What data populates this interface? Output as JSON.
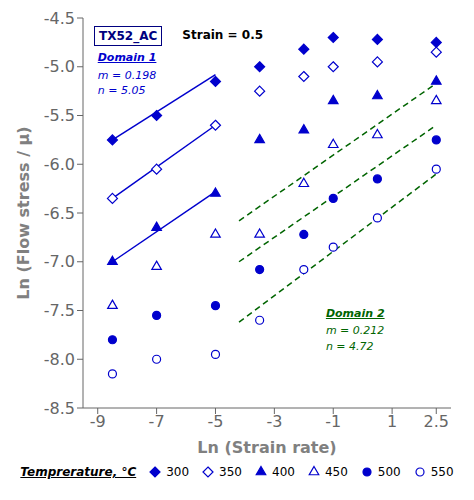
{
  "chart_data": {
    "type": "scatter",
    "xlabel": "Ln (Strain rate)",
    "ylabel": "Ln (Flow stress / μ)",
    "xlim": [
      -9.5,
      3.0
    ],
    "ylim": [
      -8.5,
      -4.5
    ],
    "xticks": [
      -9,
      -7,
      -5,
      -3,
      -1,
      1,
      2.5
    ],
    "yticks": [
      -8.5,
      {
        "value": -8.0,
        "label": "-8.0"
      },
      -7.5,
      {
        "value": -7.0,
        "label": "-7.0"
      },
      -6.5,
      {
        "value": -6.0,
        "label": "-6.0"
      },
      -5.5,
      {
        "value": -5.0,
        "label": "-5.0"
      },
      -4.5
    ],
    "grid": false,
    "legend": "bottom",
    "legend_title": "Temprerature, °C",
    "annotations": [
      {
        "text": "TX52_AC",
        "color": "#000080"
      },
      {
        "text": "Strain = 0.5",
        "color": "#000000"
      },
      {
        "text": "Domain 1",
        "color": "#0000CD"
      },
      {
        "text": "m = 0.198",
        "color": "#0000CD"
      },
      {
        "text": "n = 5.05",
        "color": "#0000CD"
      },
      {
        "text": "Domain 2",
        "color": "#006400"
      },
      {
        "text": "m = 0.212",
        "color": "#006400"
      },
      {
        "text": "n = 4.72",
        "color": "#006400"
      }
    ],
    "series": [
      {
        "name": "300",
        "type": "scatter",
        "marker": "filled_diamond",
        "color": "#0000CD",
        "x": [
          -8.5,
          -7.0,
          -5.0,
          -3.5,
          -2.0,
          -1.0,
          0.5,
          2.5
        ],
        "values": [
          -5.75,
          -5.5,
          -5.15,
          -5.0,
          -4.82,
          -4.7,
          -4.72,
          -4.75
        ]
      },
      {
        "name": "350",
        "type": "scatter",
        "marker": "open_diamond",
        "color": "#0000CD",
        "x": [
          -8.5,
          -7.0,
          -5.0,
          -3.5,
          -2.0,
          -1.0,
          0.5,
          2.5
        ],
        "values": [
          -6.35,
          -6.05,
          -5.6,
          -5.25,
          -5.1,
          -5.0,
          -4.95,
          -4.85
        ]
      },
      {
        "name": "400",
        "type": "scatter",
        "marker": "filled_triangle",
        "color": "#0000CD",
        "x": [
          -8.5,
          -7.0,
          -5.0,
          -3.5,
          -2.0,
          -1.0,
          0.5,
          2.5
        ],
        "values": [
          -7.0,
          -6.65,
          -6.3,
          -5.75,
          -5.65,
          -5.35,
          -5.3,
          -5.15
        ]
      },
      {
        "name": "450",
        "type": "scatter",
        "marker": "open_triangle",
        "color": "#0000CD",
        "x": [
          -8.5,
          -7.0,
          -5.0,
          -3.5,
          -2.0,
          -1.0,
          0.5,
          2.5
        ],
        "values": [
          -7.45,
          -7.05,
          -6.72,
          -6.72,
          -6.2,
          -5.8,
          -5.7,
          -5.35
        ]
      },
      {
        "name": "500",
        "type": "scatter",
        "marker": "filled_circle",
        "color": "#0000CD",
        "x": [
          -8.5,
          -7.0,
          -5.0,
          -3.5,
          -2.0,
          -1.0,
          0.5,
          2.5
        ],
        "values": [
          -7.8,
          -7.55,
          -7.45,
          -7.08,
          -6.72,
          -6.35,
          -6.15,
          -5.75
        ]
      },
      {
        "name": "550",
        "type": "scatter",
        "marker": "open_circle",
        "color": "#0000CD",
        "x": [
          -8.5,
          -7.0,
          -5.0,
          -3.5,
          -2.0,
          -1.0,
          0.5,
          2.5
        ],
        "values": [
          -8.15,
          -8.0,
          -7.95,
          -7.6,
          -7.08,
          -6.85,
          -6.55,
          -6.05
        ]
      },
      {
        "type": "line",
        "line_style": "solid",
        "color": "#0000CD",
        "x": [
          -8.5,
          -5.0
        ],
        "values": [
          -5.75,
          -5.08
        ]
      },
      {
        "type": "line",
        "line_style": "solid",
        "color": "#0000CD",
        "x": [
          -8.5,
          -5.0
        ],
        "values": [
          -6.35,
          -5.6
        ]
      },
      {
        "type": "line",
        "line_style": "solid",
        "color": "#0000CD",
        "x": [
          -8.5,
          -5.0
        ],
        "values": [
          -7.0,
          -6.28
        ]
      },
      {
        "type": "line",
        "line_style": "dashed",
        "color": "#006400",
        "x": [
          -4.2,
          2.5
        ],
        "values": [
          -6.58,
          -5.17
        ]
      },
      {
        "type": "line",
        "line_style": "dashed",
        "color": "#006400",
        "x": [
          -4.2,
          2.5
        ],
        "values": [
          -7.0,
          -5.6
        ]
      },
      {
        "type": "line",
        "line_style": "dashed",
        "color": "#006400",
        "x": [
          -4.2,
          2.5
        ],
        "values": [
          -7.62,
          -6.1
        ]
      }
    ]
  }
}
